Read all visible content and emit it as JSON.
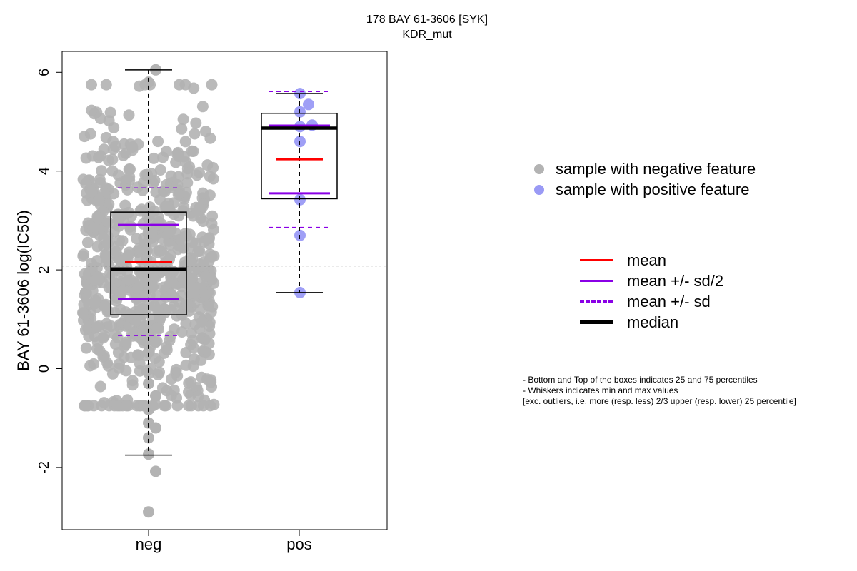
{
  "title": {
    "line1": "178 BAY 61-3606 [SYK]",
    "line2": "KDR_mut"
  },
  "legend_points": [
    {
      "label": "sample with negative feature",
      "color": "#b3b3b3"
    },
    {
      "label": "sample with positive feature",
      "color": "#9a9af5"
    }
  ],
  "legend_lines": [
    {
      "label": "mean",
      "color": "#ff0000",
      "style": "solid"
    },
    {
      "label": "mean +/- sd/2",
      "color": "#8a00e6",
      "style": "solid"
    },
    {
      "label": "mean +/- sd",
      "color": "#8a00e6",
      "style": "dashed"
    },
    {
      "label": "median",
      "color": "#000000",
      "style": "thick"
    }
  ],
  "notes": [
    "- Bottom and Top of the boxes indicates 25 and 75 percentiles",
    "- Whiskers indicates min and max values",
    "[exc. outliers, i.e. more (resp. less) 2/3 upper (resp. lower) 25 percentile]"
  ],
  "chart_data": {
    "type": "box",
    "ylabel": "BAY 61-3606 log(IC50)",
    "xlabel": "",
    "ylim": [
      -3.25,
      6.45
    ],
    "yticks": [
      -2,
      0,
      2,
      4,
      6
    ],
    "categories": [
      "neg",
      "pos"
    ],
    "reference_line": {
      "y": 2.08,
      "style": "dotted"
    },
    "groups": [
      {
        "name": "neg",
        "color": "#b3b3b3",
        "q1": 1.09,
        "median": 2.02,
        "q3": 3.17,
        "whisker_low": -1.75,
        "whisker_high": 6.05,
        "mean": 2.16,
        "mean_minus_half_sd": 1.41,
        "mean_plus_half_sd": 2.91,
        "mean_minus_sd": 0.67,
        "mean_plus_sd": 3.66,
        "n_points": 700,
        "outliers": [
          -2.08,
          -2.9
        ]
      },
      {
        "name": "pos",
        "color": "#9a9af5",
        "q1": 3.44,
        "median": 4.87,
        "q3": 5.17,
        "whisker_low": 1.54,
        "whisker_high": 5.57,
        "mean": 4.24,
        "mean_minus_half_sd": 3.55,
        "mean_plus_half_sd": 4.92,
        "mean_minus_sd": 2.86,
        "mean_plus_sd": 5.61,
        "points": [
          5.57,
          5.35,
          5.2,
          4.93,
          4.9,
          4.6,
          3.42,
          2.7,
          1.54
        ]
      }
    ]
  }
}
